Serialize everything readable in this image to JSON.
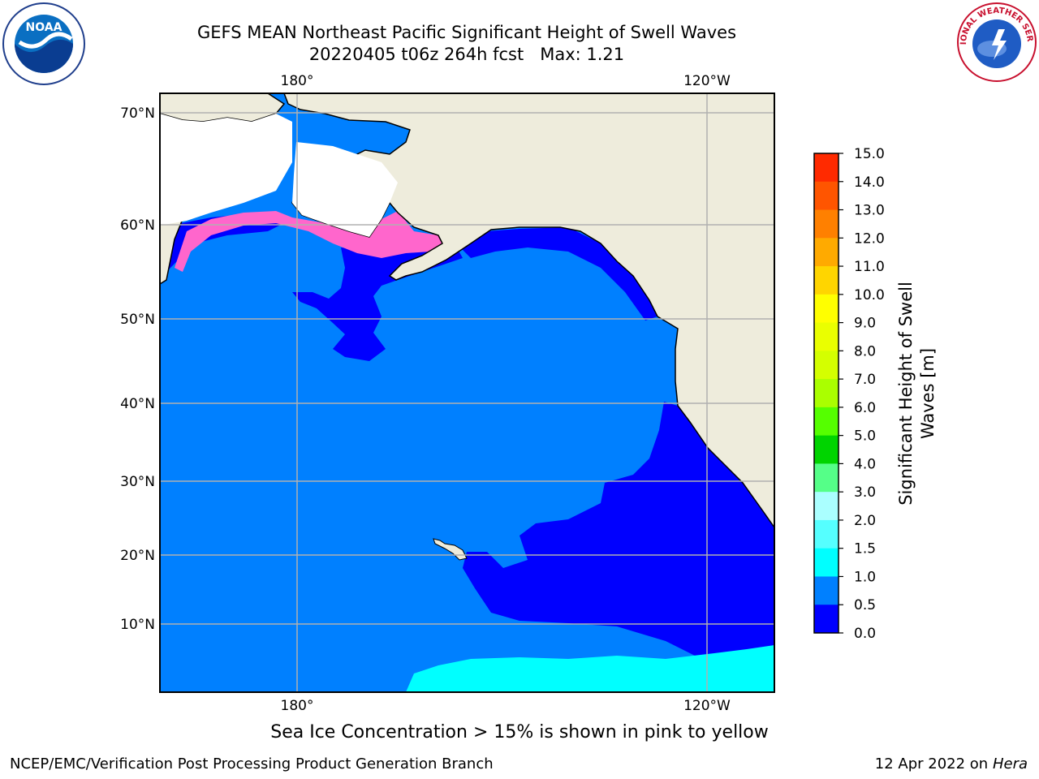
{
  "title_line1": "GEFS MEAN Northeast Pacific Significant Height of Swell Waves",
  "title_line2": "20220405 t06z 264h fcst   Max: 1.21",
  "logos": {
    "left": {
      "icon": "noaa-logo",
      "text": "NOAA"
    },
    "right": {
      "icon": "nws-logo",
      "text": "NATIONAL WEATHER SERVICE"
    }
  },
  "map": {
    "projection": "equirectangular",
    "lon_labels": [
      "180°",
      "120°W"
    ],
    "lat_labels": [
      "70°N",
      "60°N",
      "50°N",
      "40°N",
      "30°N",
      "20°N",
      "10°N"
    ],
    "colors": {
      "land": "#eeecdc",
      "ocean_0_0_5": "#0000ff",
      "ocean_0_5_1_0": "#0080ff",
      "ocean_1_0_1_5": "#00ffff",
      "sea_ice_low": "#ff66cc",
      "sea_ice_high": "#ffcc00",
      "grid": "#b0b0b0",
      "coast": "#000000"
    }
  },
  "colorbar": {
    "label_line1": "Significant Height of Swell",
    "label_line2": "Waves [m]",
    "ticks": [
      "15.0",
      "14.0",
      "13.0",
      "12.0",
      "11.0",
      "10.0",
      "9.0",
      "8.0",
      "7.0",
      "6.0",
      "5.0",
      "4.0",
      "3.0",
      "2.0",
      "1.5",
      "1.0",
      "0.5",
      "0.0"
    ],
    "band_colors": [
      "#ff0000",
      "#ff2a00",
      "#ff5500",
      "#ff8000",
      "#ffaa00",
      "#ffd500",
      "#ffff00",
      "#eaff00",
      "#d4ff00",
      "#aaff00",
      "#55ff00",
      "#00d400",
      "#55ff88",
      "#aaffff",
      "#55ffff",
      "#00ffff",
      "#0080ff",
      "#0000ff"
    ]
  },
  "ice_note": "Sea Ice Concentration > 15% is shown in pink to yellow",
  "footer": {
    "left": "NCEP/EMC/Verification Post Processing Product Generation Branch",
    "right_date": "12 Apr 2022 on ",
    "right_host": "Hera"
  }
}
